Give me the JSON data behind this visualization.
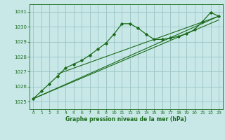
{
  "bg_color": "#c8e8e8",
  "grid_color": "#a0c8c8",
  "line_color": "#1a6b1a",
  "title": "Graphe pression niveau de la mer (hPa)",
  "xlim": [
    -0.5,
    23.5
  ],
  "ylim": [
    1024.5,
    1031.5
  ],
  "yticks": [
    1025,
    1026,
    1027,
    1028,
    1029,
    1030,
    1031
  ],
  "xticks": [
    0,
    1,
    2,
    3,
    4,
    5,
    6,
    7,
    8,
    9,
    10,
    11,
    12,
    13,
    14,
    15,
    16,
    17,
    18,
    19,
    20,
    21,
    22,
    23
  ],
  "series_main": [
    [
      0,
      1025.2
    ],
    [
      1,
      1025.7
    ],
    [
      2,
      1026.2
    ],
    [
      3,
      1026.7
    ],
    [
      4,
      1027.25
    ],
    [
      5,
      1027.5
    ],
    [
      6,
      1027.75
    ],
    [
      7,
      1028.1
    ],
    [
      8,
      1028.5
    ],
    [
      9,
      1028.9
    ],
    [
      10,
      1029.5
    ],
    [
      11,
      1030.2
    ],
    [
      12,
      1030.2
    ],
    [
      13,
      1029.9
    ],
    [
      14,
      1029.5
    ],
    [
      15,
      1029.15
    ],
    [
      16,
      1029.15
    ],
    [
      17,
      1029.25
    ],
    [
      18,
      1029.35
    ],
    [
      19,
      1029.55
    ],
    [
      20,
      1029.8
    ],
    [
      21,
      1030.35
    ],
    [
      22,
      1030.95
    ],
    [
      23,
      1030.7
    ]
  ],
  "series_linear1": [
    [
      0,
      1025.2
    ],
    [
      23,
      1030.7
    ]
  ],
  "series_linear2": [
    [
      0,
      1025.2
    ],
    [
      23,
      1030.45
    ]
  ],
  "series_linear3": [
    [
      3,
      1026.85
    ],
    [
      23,
      1030.7
    ]
  ]
}
